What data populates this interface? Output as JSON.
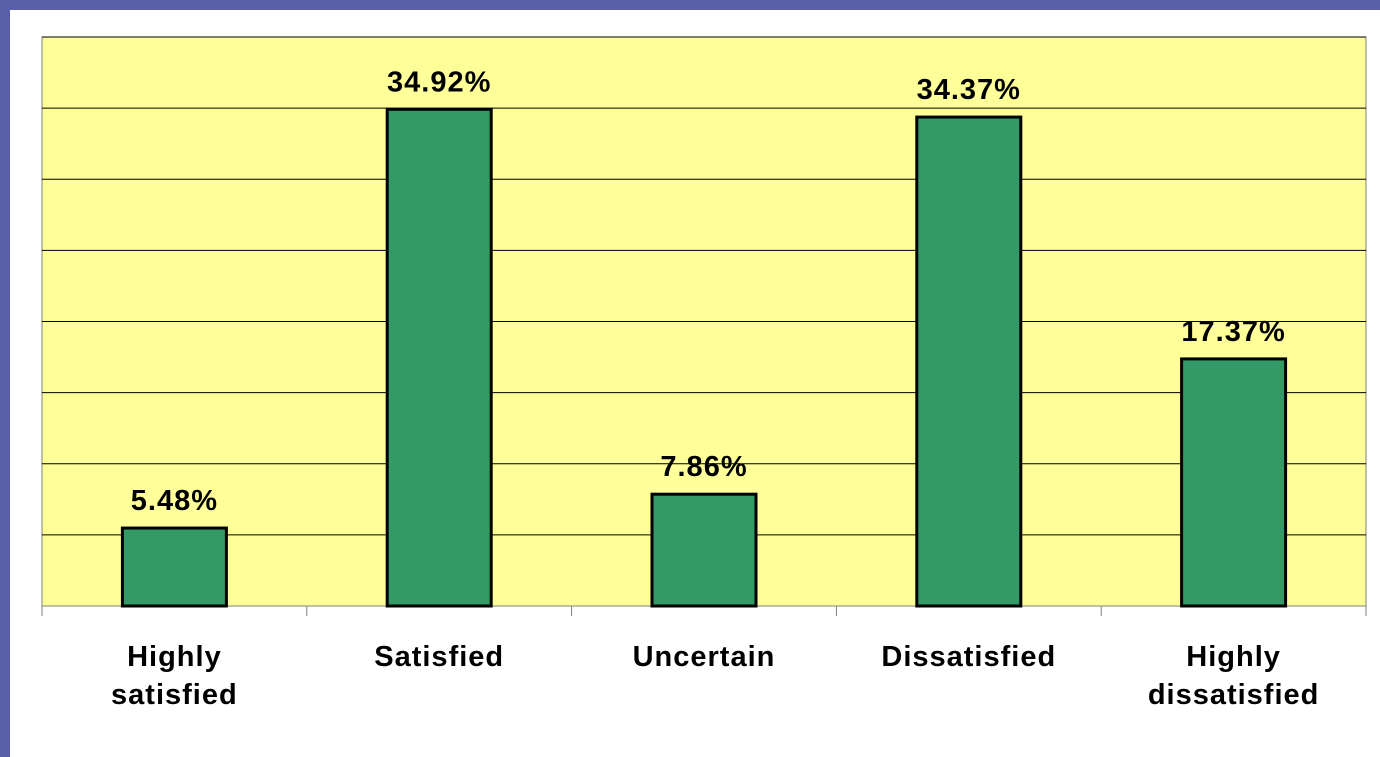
{
  "chart_data": {
    "type": "bar",
    "categories": [
      "Highly satisfied",
      "Satisfied",
      "Uncertain",
      "Dissatisfied",
      "Highly dissatisfied"
    ],
    "values": [
      5.48,
      34.92,
      7.86,
      34.37,
      17.37
    ],
    "value_labels": [
      "5.48%",
      "34.92%",
      "7.86%",
      "34.37%",
      "17.37%"
    ],
    "color": "#339966",
    "ylim": [
      0,
      40
    ],
    "yticks": [
      0,
      5,
      10,
      15,
      20,
      25,
      30,
      35,
      40
    ],
    "grid": true
  }
}
